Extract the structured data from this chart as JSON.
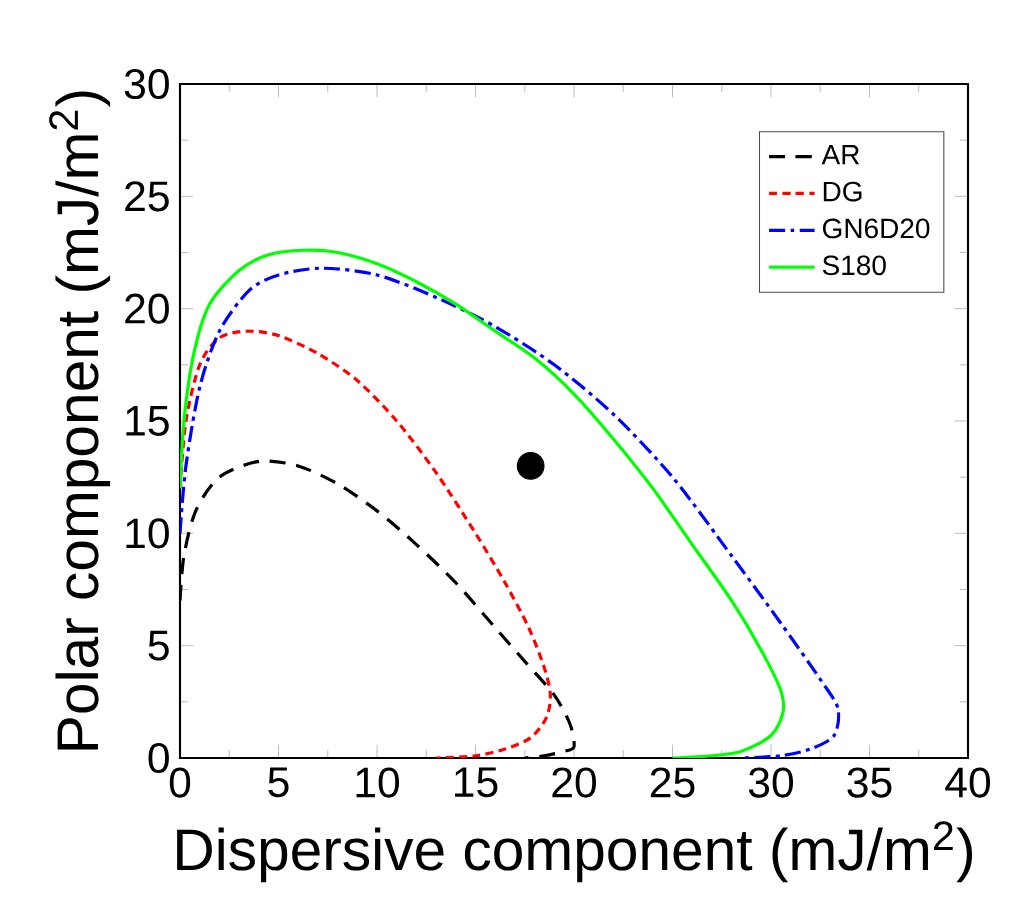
{
  "chart_data": {
    "type": "line",
    "xlabel": "Dispersive component (mJ/m$^{2}$)",
    "ylabel": "Polar component (mJ/m$^{2}$)",
    "xlim": [
      0,
      40
    ],
    "ylim": [
      0,
      30
    ],
    "xticks": [
      0,
      5,
      10,
      15,
      20,
      25,
      30,
      35,
      40
    ],
    "yticks": [
      0,
      5,
      10,
      15,
      20,
      25,
      30
    ],
    "grid": false,
    "legend": "top right",
    "series": [
      {
        "name": "AR",
        "color": "#000000",
        "line_style": "dashed",
        "x": [
          0,
          0.2,
          0.8,
          2,
          4,
          6,
          8,
          10,
          12,
          14,
          16,
          17.5,
          19,
          19.8,
          20,
          19.5,
          18.5,
          17.5
        ],
        "values": [
          7,
          9,
          11,
          12.5,
          13.2,
          13,
          12.2,
          11,
          9.5,
          7.8,
          5.8,
          4.3,
          2.8,
          1.5,
          0.5,
          0.3,
          0.1,
          0
        ]
      },
      {
        "name": "DG",
        "color": "#ff0000",
        "line_style": "dotted",
        "x": [
          0,
          0.3,
          1,
          2,
          3.4,
          5,
          7,
          9,
          11,
          13,
          15,
          16.5,
          17.7,
          18.5,
          18.8,
          18.6,
          17.8,
          16.5,
          15,
          13
        ],
        "values": [
          12,
          15,
          17.5,
          18.7,
          19,
          18.8,
          18,
          16.8,
          15,
          12.7,
          10,
          7.8,
          5.8,
          4,
          2.8,
          1.8,
          0.9,
          0.4,
          0.1,
          0
        ]
      },
      {
        "name": "GN6D20",
        "color": "#0000ff",
        "line_style": "dashdot",
        "x": [
          0,
          0.3,
          1,
          2,
          3.5,
          5,
          7.2,
          10,
          13,
          16,
          19,
          22,
          25,
          28,
          30.5,
          32.5,
          33.4,
          33.2,
          32,
          30.5,
          28.6
        ],
        "values": [
          10,
          13,
          16.5,
          19,
          20.8,
          21.5,
          21.8,
          21.5,
          20.5,
          19.2,
          17.5,
          15.3,
          12.5,
          9,
          6,
          3.5,
          2.2,
          1,
          0.4,
          0.1,
          0
        ]
      },
      {
        "name": "S180",
        "color": "#00ff00",
        "line_style": "solid",
        "x": [
          0,
          0.2,
          0.7,
          1.5,
          3,
          4.5,
          6.3,
          8,
          10,
          12,
          14,
          16,
          18,
          20,
          22,
          24,
          26,
          28,
          29.5,
          30.5,
          30.6,
          30,
          28.5,
          27,
          25
        ],
        "values": [
          12,
          15,
          18,
          20.2,
          21.7,
          22.4,
          22.6,
          22.5,
          22,
          21.2,
          20.2,
          19,
          17.8,
          16.2,
          14.2,
          12,
          9.5,
          7,
          4.8,
          3,
          2,
          1,
          0.3,
          0.1,
          0
        ]
      },
      {
        "type": "scatter",
        "color": "#000000",
        "marker": "circle",
        "x": [
          17.8
        ],
        "values": [
          13
        ]
      }
    ]
  }
}
